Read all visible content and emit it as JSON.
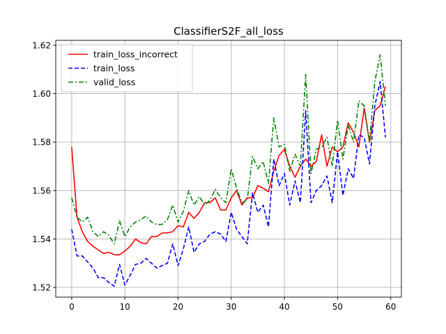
{
  "chart_data": {
    "type": "line",
    "title": "ClassifierS2F_all_loss",
    "xlabel": "",
    "ylabel": "",
    "xlim": [
      -3,
      62
    ],
    "ylim": [
      1.516,
      1.622
    ],
    "xticks": [
      0,
      10,
      20,
      30,
      40,
      50,
      60
    ],
    "yticks": [
      1.52,
      1.54,
      1.56,
      1.58,
      1.6,
      1.62
    ],
    "xtick_labels": [
      "0",
      "10",
      "20",
      "30",
      "40",
      "50",
      "60"
    ],
    "ytick_labels": [
      "1.52",
      "1.54",
      "1.56",
      "1.58",
      "1.60",
      "1.62"
    ],
    "grid": true,
    "legend_position": "top-left",
    "x": [
      0,
      1,
      2,
      3,
      4,
      5,
      6,
      7,
      8,
      9,
      10,
      11,
      12,
      13,
      14,
      15,
      16,
      17,
      18,
      19,
      20,
      21,
      22,
      23,
      24,
      25,
      26,
      27,
      28,
      29,
      30,
      31,
      32,
      33,
      34,
      35,
      36,
      37,
      38,
      39,
      40,
      41,
      42,
      43,
      44,
      45,
      46,
      47,
      48,
      49,
      50,
      51,
      52,
      53,
      54,
      55,
      56,
      57,
      58,
      59
    ],
    "series": [
      {
        "name": "train_loss_incorrect",
        "color": "#ff0000",
        "style": "solid",
        "values": [
          1.578,
          1.549,
          1.543,
          1.539,
          1.537,
          1.5355,
          1.534,
          1.5345,
          1.5335,
          1.5335,
          1.535,
          1.537,
          1.54,
          1.5385,
          1.538,
          1.541,
          1.541,
          1.5425,
          1.5425,
          1.543,
          1.5455,
          1.545,
          1.551,
          1.5485,
          1.551,
          1.555,
          1.555,
          1.557,
          1.552,
          1.552,
          1.557,
          1.56,
          1.554,
          1.557,
          1.557,
          1.562,
          1.561,
          1.5595,
          1.568,
          1.5745,
          1.577,
          1.57,
          1.5655,
          1.57,
          1.573,
          1.57,
          1.572,
          1.583,
          1.57,
          1.578,
          1.576,
          1.578,
          1.588,
          1.584,
          1.578,
          1.594,
          1.58,
          1.593,
          1.595,
          1.603
        ]
      },
      {
        "name": "train_loss",
        "color": "#0000ff",
        "style": "dashed",
        "values": [
          1.544,
          1.533,
          1.533,
          1.5305,
          1.528,
          1.524,
          1.524,
          1.522,
          1.5205,
          1.5295,
          1.521,
          1.525,
          1.5295,
          1.53,
          1.532,
          1.53,
          1.528,
          1.529,
          1.53,
          1.538,
          1.529,
          1.536,
          1.545,
          1.5345,
          1.538,
          1.539,
          1.542,
          1.543,
          1.542,
          1.539,
          1.551,
          1.544,
          1.541,
          1.538,
          1.559,
          1.551,
          1.554,
          1.545,
          1.573,
          1.562,
          1.567,
          1.554,
          1.564,
          1.555,
          1.593,
          1.555,
          1.56,
          1.562,
          1.566,
          1.555,
          1.576,
          1.558,
          1.569,
          1.565,
          1.583,
          1.582,
          1.571,
          1.595,
          1.605,
          1.582
        ]
      },
      {
        "name": "valid_loss",
        "color": "#008000",
        "style": "dashdot",
        "values": [
          1.557,
          1.549,
          1.547,
          1.549,
          1.543,
          1.541,
          1.543,
          1.5415,
          1.538,
          1.5475,
          1.541,
          1.545,
          1.547,
          1.548,
          1.5495,
          1.547,
          1.546,
          1.546,
          1.548,
          1.554,
          1.547,
          1.5515,
          1.56,
          1.554,
          1.5575,
          1.554,
          1.556,
          1.5605,
          1.557,
          1.555,
          1.569,
          1.561,
          1.555,
          1.556,
          1.574,
          1.569,
          1.572,
          1.563,
          1.59,
          1.578,
          1.579,
          1.568,
          1.575,
          1.57,
          1.608,
          1.567,
          1.577,
          1.578,
          1.582,
          1.57,
          1.589,
          1.573,
          1.587,
          1.58,
          1.597,
          1.595,
          1.58,
          1.605,
          1.616,
          1.595
        ]
      }
    ]
  }
}
